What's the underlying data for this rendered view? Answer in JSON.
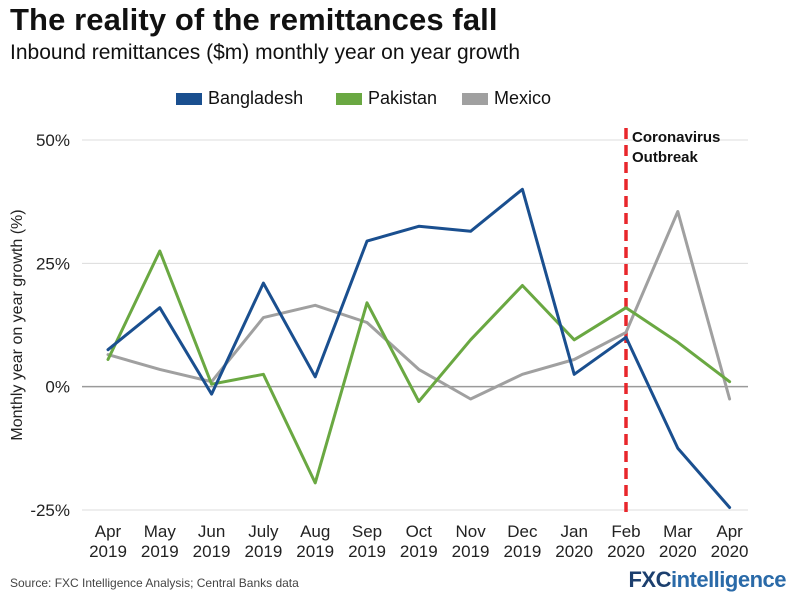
{
  "title": "The reality of the remittances fall",
  "subtitle": "Inbound remittances ($m) monthly year on year growth",
  "source": "Source: FXC Intelligence Analysis; Central Banks data",
  "logo": {
    "part1": "FXC",
    "part2": "intelligence"
  },
  "chart_data": {
    "type": "line",
    "ylabel": "Monthly year on year growth (%)",
    "ylim": [
      -25,
      50
    ],
    "yticks": [
      -25,
      0,
      25,
      50
    ],
    "ytick_labels": [
      "-25%",
      "0%",
      "25%",
      "50%"
    ],
    "grid": "horizontal",
    "legend_position": "top",
    "categories": [
      [
        "Apr",
        "2019"
      ],
      [
        "May",
        "2019"
      ],
      [
        "Jun",
        "2019"
      ],
      [
        "July",
        "2019"
      ],
      [
        "Aug",
        "2019"
      ],
      [
        "Sep",
        "2019"
      ],
      [
        "Oct",
        "2019"
      ],
      [
        "Nov",
        "2019"
      ],
      [
        "Dec",
        "2019"
      ],
      [
        "Jan",
        "2020"
      ],
      [
        "Feb",
        "2020"
      ],
      [
        "Mar",
        "2020"
      ],
      [
        "Apr",
        "2020"
      ]
    ],
    "series": [
      {
        "name": "Bangladesh",
        "color": "#1a4f8f",
        "values": [
          7.5,
          16,
          -1.5,
          21,
          2,
          29.5,
          32.5,
          31.5,
          40,
          2.5,
          10,
          -12.5,
          -24.5
        ]
      },
      {
        "name": "Pakistan",
        "color": "#6aa842",
        "values": [
          5.5,
          27.5,
          0.5,
          2.5,
          -19.5,
          17,
          -3,
          9.5,
          20.5,
          9.5,
          16,
          9,
          1
        ]
      },
      {
        "name": "Mexico",
        "color": "#a0a0a0",
        "values": [
          6.5,
          3.5,
          1,
          14,
          16.5,
          13,
          3.5,
          -2.5,
          2.5,
          5.5,
          11,
          35.5,
          -2.5
        ]
      }
    ],
    "annotation": {
      "text_line1": "Coronavirus",
      "text_line2": "Outbreak",
      "at_category_index": 10,
      "color": "#e8262b"
    }
  }
}
